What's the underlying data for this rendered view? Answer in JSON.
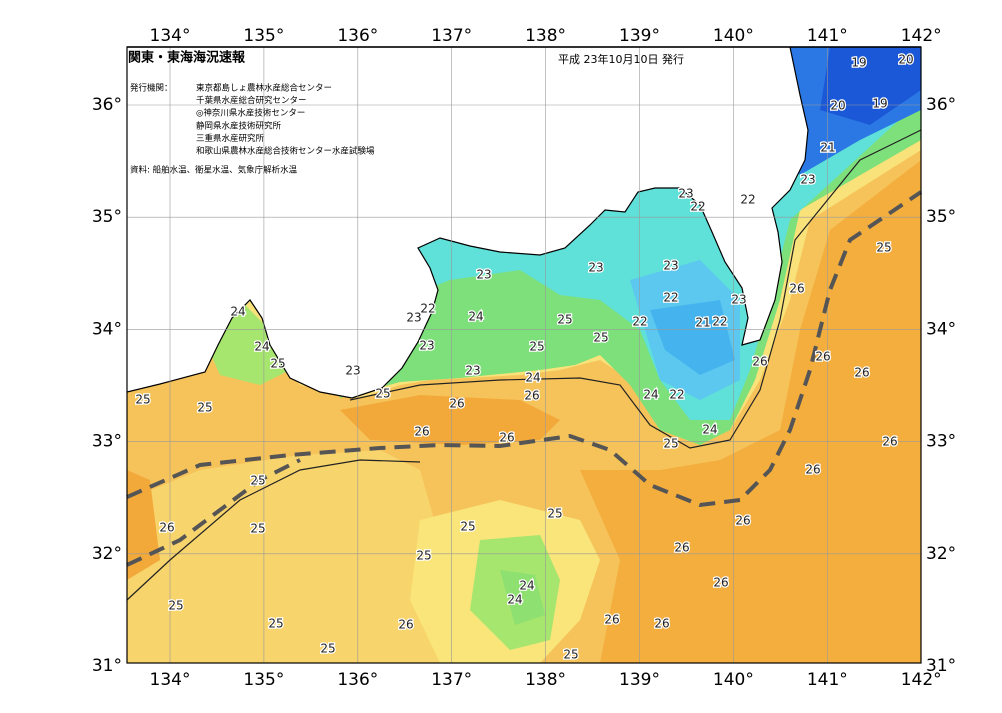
{
  "header": {
    "title": "関東・東海海況速報",
    "date": "平成 23年10月10日 発行",
    "agencies_label": "発行機関：",
    "agencies": [
      "東京都島しょ農林水産総合センター",
      "千葉県水産総合研究センター",
      "◎神奈川県水産技術センター",
      "静岡県水産技術研究所",
      "三重県水産研究所",
      "和歌山県農林水産総合技術センター水産試験場"
    ],
    "source": "資料: 船舶水温、衛星水温、気象庁解析水温"
  },
  "axes": {
    "longitudes": [
      "134°",
      "135°",
      "136°",
      "137°",
      "138°",
      "139°",
      "140°",
      "141°",
      "142°"
    ],
    "latitudes": [
      "36°",
      "35°",
      "34°",
      "33°",
      "32°",
      "31°"
    ]
  },
  "contour_labels": [
    19,
    20,
    20,
    19,
    21,
    23,
    22,
    23,
    22,
    25,
    23,
    23,
    23,
    26,
    22,
    23,
    22,
    23,
    24,
    25,
    22,
    21,
    22,
    25,
    24,
    24,
    23,
    25,
    26,
    25,
    26,
    23,
    23,
    24,
    26,
    25,
    25,
    24,
    22,
    26,
    25,
    26,
    24,
    26,
    26,
    25,
    26,
    26,
    25,
    26,
    25,
    25,
    26,
    25,
    26,
    25,
    26,
    24,
    24,
    25,
    26,
    26,
    26,
    25,
    25,
    25
  ]
}
